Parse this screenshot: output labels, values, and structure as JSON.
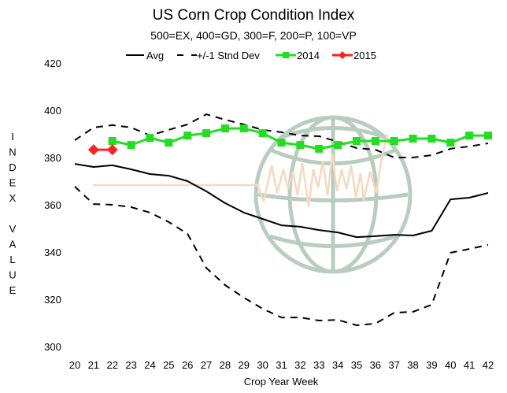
{
  "chart_data": {
    "type": "line",
    "title": "US Corn Crop Condition Index",
    "subtitle": "500=EX, 400=GD, 300=F, 200=P, 100=VP",
    "xlabel": "Crop Year Week",
    "ylabel": "INDEX VALUE",
    "ylabel_letters": [
      "I",
      "N",
      "D",
      "E",
      "X",
      "",
      "V",
      "A",
      "L",
      "U",
      "E"
    ],
    "ylim": [
      300,
      420
    ],
    "yticks": [
      300,
      320,
      340,
      360,
      380,
      400,
      420
    ],
    "x": [
      20,
      21,
      22,
      23,
      24,
      25,
      26,
      27,
      28,
      29,
      30,
      31,
      32,
      33,
      34,
      35,
      36,
      37,
      38,
      39,
      40,
      41,
      42
    ],
    "grid": false,
    "legend_position": "top",
    "series": [
      {
        "name": "Avg",
        "style": "solid",
        "color": "#000000",
        "values": [
          377.3,
          376,
          376.7,
          375,
          373,
          372.3,
          370,
          365.7,
          360.7,
          356.7,
          354,
          351.3,
          350.7,
          349.3,
          348.3,
          346.3,
          346.7,
          347.3,
          347,
          349,
          362.3,
          363,
          365
        ]
      },
      {
        "name": "+/-1 Stnd Dev",
        "style": "dashed",
        "color": "#000000",
        "values_upper": [
          387.3,
          392.7,
          393.7,
          392.7,
          389.3,
          391.7,
          394,
          398.3,
          396,
          394,
          391.7,
          390.7,
          389.3,
          389,
          386.7,
          384,
          383.3,
          380,
          380,
          381,
          383.7,
          384.7,
          386
        ],
        "values_lower": [
          367.7,
          360.3,
          360,
          359,
          356.7,
          352.7,
          347.7,
          333.3,
          326,
          320.7,
          316,
          312.3,
          312.3,
          311,
          311.3,
          309,
          309.7,
          314.3,
          314.7,
          317.7,
          339.7,
          341.3,
          343
        ]
      },
      {
        "name": "2014",
        "style": "solid-square-markers",
        "color": "#22dd22",
        "values": [
          null,
          null,
          387,
          385.3,
          388.3,
          386.3,
          389.3,
          390.3,
          392.3,
          392.3,
          390.3,
          386.3,
          385.3,
          383.7,
          385.3,
          387,
          387,
          387,
          388,
          388,
          386.3,
          389.3,
          389.3
        ]
      },
      {
        "name": "2015",
        "style": "solid-diamond-markers",
        "color": "#ff2222",
        "values": [
          null,
          383.3,
          383.3,
          null,
          null,
          null,
          null,
          null,
          null,
          null,
          null,
          null,
          null,
          null,
          null,
          null,
          null,
          null,
          null,
          null,
          null,
          null,
          null
        ]
      }
    ],
    "watermark": "globe-logo"
  }
}
